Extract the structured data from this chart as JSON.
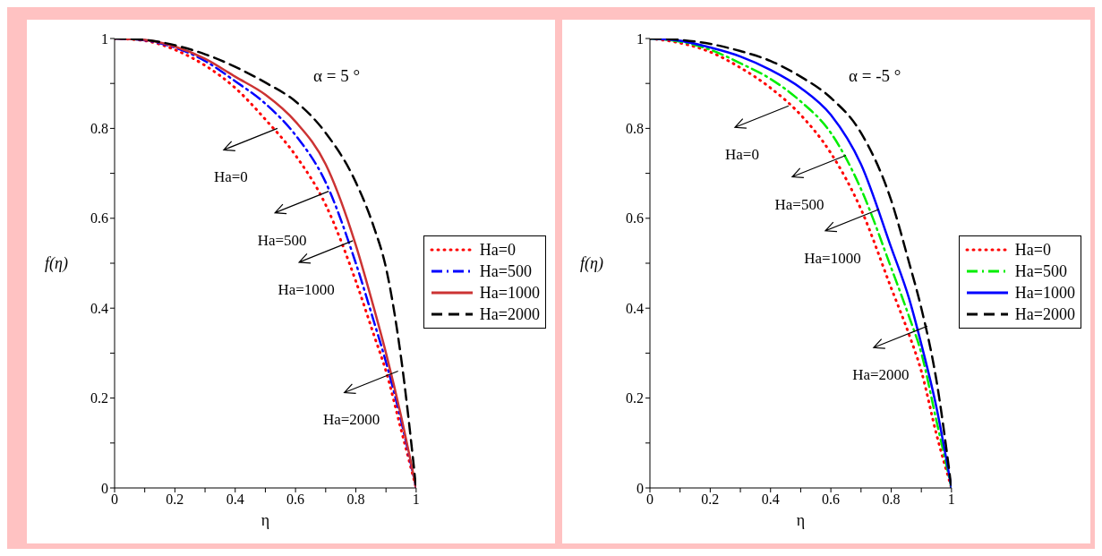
{
  "chart_data": [
    {
      "type": "line",
      "xlabel": "η",
      "ylabel": "f(η)",
      "x": [
        0,
        0.1,
        0.2,
        0.3,
        0.4,
        0.5,
        0.6,
        0.7,
        0.8,
        0.86,
        0.9,
        0.95,
        1
      ],
      "xlim": [
        0,
        1
      ],
      "ylim": [
        0,
        1
      ],
      "xticks": [
        0,
        {
          "value": 0.1,
          "label": null
        },
        0.2,
        {
          "value": 0.3,
          "label": null
        },
        0.4,
        {
          "value": 0.5,
          "label": null
        },
        0.6,
        {
          "value": 0.7,
          "label": null
        },
        0.8,
        {
          "value": 0.9,
          "label": null
        },
        1
      ],
      "yticks": [
        0,
        {
          "value": 0.1,
          "label": null
        },
        0.2,
        {
          "value": 0.3,
          "label": null
        },
        0.4,
        {
          "value": 0.5,
          "label": null
        },
        0.6,
        {
          "value": 0.7,
          "label": null
        },
        0.8,
        {
          "value": 0.9,
          "label": null
        },
        1
      ],
      "legend": "right",
      "series": [
        {
          "name": "Ha=0",
          "color": "#ff0000",
          "line_style": "dotted",
          "values": [
            1,
            0.995,
            0.975,
            0.94,
            0.89,
            0.82,
            0.74,
            0.63,
            0.46,
            0.34,
            0.26,
            0.13,
            0
          ]
        },
        {
          "name": "Ha=500",
          "color": "#0000ff",
          "line_style": "dashdot",
          "values": [
            1,
            0.996,
            0.98,
            0.95,
            0.905,
            0.855,
            0.785,
            0.68,
            0.5,
            0.37,
            0.28,
            0.15,
            0
          ]
        },
        {
          "name": "Ha=1000",
          "color": "#cc3333",
          "line_style": "solid",
          "values": [
            1,
            0.997,
            0.982,
            0.955,
            0.915,
            0.875,
            0.815,
            0.72,
            0.54,
            0.4,
            0.3,
            0.16,
            0
          ]
        },
        {
          "name": "Ha=2000",
          "color": "#000000",
          "line_style": "dashed",
          "values": [
            1,
            0.997,
            0.985,
            0.965,
            0.937,
            0.902,
            0.86,
            0.79,
            0.68,
            0.58,
            0.49,
            0.29,
            0
          ]
        }
      ],
      "annotations": [
        "α = 5 °",
        {
          "text": "Ha=0",
          "x": 0.54,
          "y": 0.8
        },
        {
          "text": "Ha=500",
          "x": 0.71,
          "y": 0.66
        },
        {
          "text": "Ha=1000",
          "x": 0.79,
          "y": 0.55
        },
        {
          "text": "Ha=2000",
          "x": 0.94,
          "y": 0.26
        }
      ]
    },
    {
      "type": "line",
      "xlabel": "η",
      "ylabel": "f(η)",
      "x": [
        0,
        0.1,
        0.2,
        0.3,
        0.4,
        0.5,
        0.6,
        0.7,
        0.8,
        0.86,
        0.9,
        0.95,
        1
      ],
      "xlim": [
        0,
        1
      ],
      "ylim": [
        0,
        1
      ],
      "xticks": [
        0,
        {
          "value": 0.1,
          "label": null
        },
        0.2,
        {
          "value": 0.3,
          "label": null
        },
        0.4,
        {
          "value": 0.5,
          "label": null
        },
        0.6,
        {
          "value": 0.7,
          "label": null
        },
        0.8,
        {
          "value": 0.9,
          "label": null
        },
        1
      ],
      "yticks": [
        0,
        {
          "value": 0.1,
          "label": null
        },
        0.2,
        {
          "value": 0.3,
          "label": null
        },
        0.4,
        {
          "value": 0.5,
          "label": null
        },
        0.6,
        {
          "value": 0.7,
          "label": null
        },
        0.8,
        {
          "value": 0.9,
          "label": null
        },
        1
      ],
      "legend": "right",
      "series": [
        {
          "name": "Ha=0",
          "color": "#ff0000",
          "line_style": "dotted",
          "values": [
            1,
            0.99,
            0.97,
            0.935,
            0.89,
            0.83,
            0.745,
            0.62,
            0.445,
            0.34,
            0.26,
            0.12,
            0
          ]
        },
        {
          "name": "Ha=500",
          "color": "#00ee00",
          "line_style": "dashdot",
          "values": [
            1,
            0.993,
            0.975,
            0.945,
            0.91,
            0.86,
            0.79,
            0.665,
            0.49,
            0.38,
            0.3,
            0.15,
            0
          ]
        },
        {
          "name": "Ha=1000",
          "color": "#0000ff",
          "line_style": "solid",
          "values": [
            1,
            0.995,
            0.98,
            0.96,
            0.93,
            0.89,
            0.83,
            0.72,
            0.535,
            0.42,
            0.32,
            0.18,
            0
          ]
        },
        {
          "name": "Ha=2000",
          "color": "#000000",
          "line_style": "dashed",
          "values": [
            1,
            0.997,
            0.988,
            0.972,
            0.95,
            0.915,
            0.868,
            0.79,
            0.64,
            0.5,
            0.4,
            0.24,
            0
          ]
        }
      ],
      "annotations": [
        "α = -5 °",
        {
          "text": "Ha=0",
          "x": 0.46,
          "y": 0.85
        },
        {
          "text": "Ha=500",
          "x": 0.65,
          "y": 0.74
        },
        {
          "text": "Ha=1000",
          "x": 0.76,
          "y": 0.62
        },
        {
          "text": "Ha=2000",
          "x": 0.92,
          "y": 0.36
        }
      ]
    }
  ]
}
